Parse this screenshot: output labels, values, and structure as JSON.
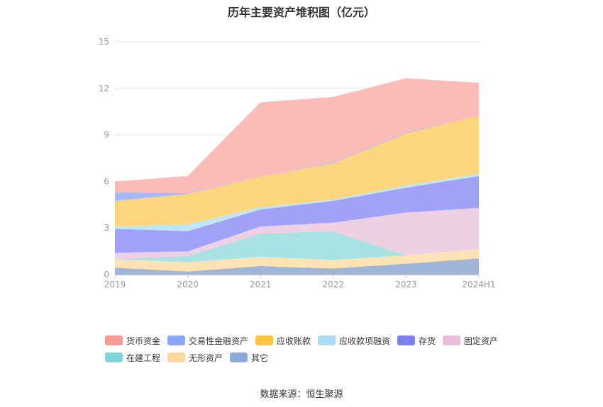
{
  "title": "历年主要资产堆积图（亿元）",
  "source": "数据来源：恒生聚源",
  "chart_data": {
    "type": "area",
    "stacked": true,
    "title": "历年主要资产堆积图（亿元）",
    "categories": [
      "2019",
      "2020",
      "2021",
      "2022",
      "2023",
      "2024H1"
    ],
    "ylim": [
      0,
      15
    ],
    "yticks": [
      0,
      3,
      6,
      9,
      12,
      15
    ],
    "grid": true,
    "legend_position": "bottom",
    "series": [
      {
        "name": "其它",
        "color": "#9fb4d9",
        "values": [
          0.45,
          0.2,
          0.55,
          0.4,
          0.7,
          1.05
        ]
      },
      {
        "name": "无形资产",
        "color": "#fde2b4",
        "values": [
          0.55,
          0.6,
          0.6,
          0.55,
          0.55,
          0.6
        ]
      },
      {
        "name": "在建工程",
        "color": "#a8e2e2",
        "values": [
          0.0,
          0.4,
          1.5,
          1.85,
          0.0,
          0.0
        ]
      },
      {
        "name": "固定资产",
        "color": "#efcfe3",
        "values": [
          0.4,
          0.3,
          0.45,
          0.55,
          2.75,
          2.65
        ]
      },
      {
        "name": "存货",
        "color": "#a0a1f7",
        "values": [
          1.55,
          1.3,
          1.1,
          1.4,
          1.6,
          2.05
        ]
      },
      {
        "name": "应收款项融资",
        "color": "#bfe6f8",
        "values": [
          0.15,
          0.45,
          0.15,
          0.1,
          0.15,
          0.15
        ]
      },
      {
        "name": "应收账款",
        "color": "#fdd57d",
        "values": [
          1.65,
          1.95,
          1.95,
          2.35,
          3.35,
          3.75
        ]
      },
      {
        "name": "交易性金融资产",
        "color": "#a3b9f9",
        "values": [
          0.55,
          0.05,
          0.0,
          0.05,
          0.05,
          0.0
        ]
      },
      {
        "name": "货币资金",
        "color": "#fbbcb7",
        "values": [
          0.7,
          1.1,
          4.8,
          4.2,
          3.5,
          2.1
        ]
      }
    ]
  },
  "legend": [
    {
      "name": "货币资金",
      "color": "#f79d95"
    },
    {
      "name": "交易性金融资产",
      "color": "#8aa6f8"
    },
    {
      "name": "应收账款",
      "color": "#fdc43e"
    },
    {
      "name": "应收款项融资",
      "color": "#a9dcf7"
    },
    {
      "name": "存货",
      "color": "#7d7ef2"
    },
    {
      "name": "固定资产",
      "color": "#ecbcdb"
    },
    {
      "name": "在建工程",
      "color": "#80d6d6"
    },
    {
      "name": "无形资产",
      "color": "#fed79c"
    },
    {
      "name": "其它",
      "color": "#8eaad8"
    }
  ]
}
